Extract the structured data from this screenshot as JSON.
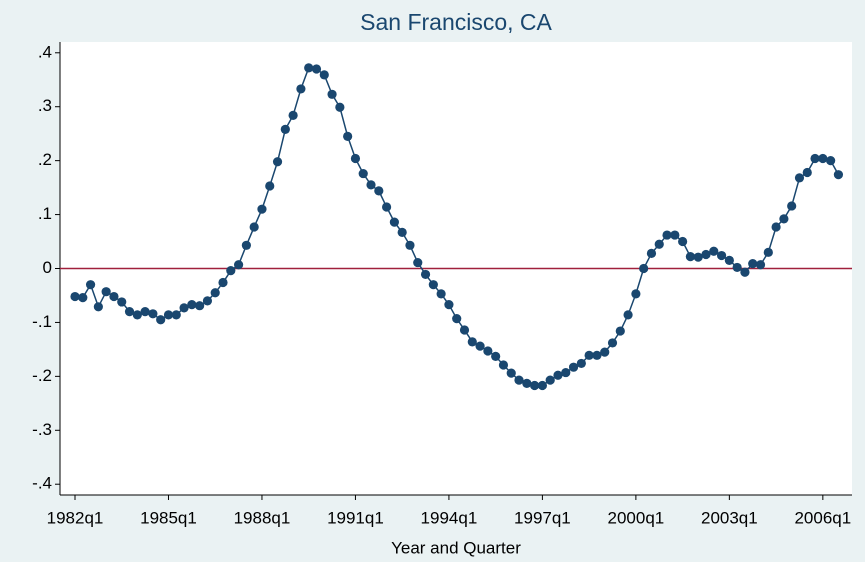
{
  "chart_data": {
    "type": "line",
    "title": "San Francisco, CA",
    "x_label": "Year and Quarter",
    "categories": [
      "1982q1",
      null,
      null,
      null,
      null,
      null,
      null,
      null,
      null,
      null,
      null,
      null,
      "1985q1",
      null,
      null,
      null,
      null,
      null,
      null,
      null,
      null,
      null,
      null,
      null,
      "1988q1",
      null,
      null,
      null,
      null,
      null,
      null,
      null,
      null,
      null,
      null,
      null,
      "1991q1",
      null,
      null,
      null,
      null,
      null,
      null,
      null,
      null,
      null,
      null,
      null,
      "1994q1",
      null,
      null,
      null,
      null,
      null,
      null,
      null,
      null,
      null,
      null,
      null,
      "1997q1",
      null,
      null,
      null,
      null,
      null,
      null,
      null,
      null,
      null,
      null,
      null,
      "2000q1",
      null,
      null,
      null,
      null,
      null,
      null,
      null,
      null,
      null,
      null,
      null,
      "2003q1",
      null,
      null,
      null,
      null,
      null,
      null,
      null,
      null,
      null,
      null,
      null,
      "2006q1",
      null,
      null
    ],
    "series": [
      {
        "name": "San Francisco, CA",
        "color": "#1a476f",
        "values": [
          -0.052,
          -0.054,
          -0.03,
          -0.071,
          -0.043,
          -0.052,
          -0.062,
          -0.08,
          -0.086,
          -0.08,
          -0.084,
          -0.095,
          -0.086,
          -0.086,
          -0.073,
          -0.067,
          -0.069,
          -0.06,
          -0.045,
          -0.026,
          -0.004,
          0.007,
          0.043,
          0.077,
          0.11,
          0.153,
          0.198,
          0.258,
          0.284,
          0.333,
          0.372,
          0.37,
          0.359,
          0.323,
          0.299,
          0.245,
          0.204,
          0.176,
          0.155,
          0.144,
          0.114,
          0.086,
          0.067,
          0.043,
          0.011,
          -0.011,
          -0.03,
          -0.047,
          -0.067,
          -0.093,
          -0.114,
          -0.136,
          -0.144,
          -0.153,
          -0.163,
          -0.179,
          -0.194,
          -0.207,
          -0.213,
          -0.217,
          -0.217,
          -0.207,
          -0.198,
          -0.193,
          -0.183,
          -0.176,
          -0.161,
          -0.161,
          -0.155,
          -0.138,
          -0.116,
          -0.086,
          -0.047,
          0.0,
          0.028,
          0.045,
          0.062,
          0.062,
          0.05,
          0.022,
          0.021,
          0.026,
          0.032,
          0.024,
          0.015,
          0.002,
          -0.007,
          0.009,
          0.007,
          0.03,
          0.077,
          0.092,
          0.116,
          0.168,
          0.178,
          0.204,
          0.204,
          0.2,
          0.174
        ]
      }
    ],
    "reference_line": {
      "value": 0,
      "color": "#a0203c"
    },
    "ylim": [
      -0.42,
      0.42
    ],
    "yticks": [
      {
        "value": -0.4,
        "label": "-.4"
      },
      {
        "value": -0.3,
        "label": "-.3"
      },
      {
        "value": -0.2,
        "label": "-.2"
      },
      {
        "value": -0.1,
        "label": "-.1"
      },
      0,
      {
        "value": 0.1,
        "label": ".1"
      },
      {
        "value": 0.2,
        "label": ".2"
      },
      {
        "value": 0.3,
        "label": ".3"
      },
      {
        "value": 0.4,
        "label": ".4"
      }
    ],
    "markers": true
  }
}
